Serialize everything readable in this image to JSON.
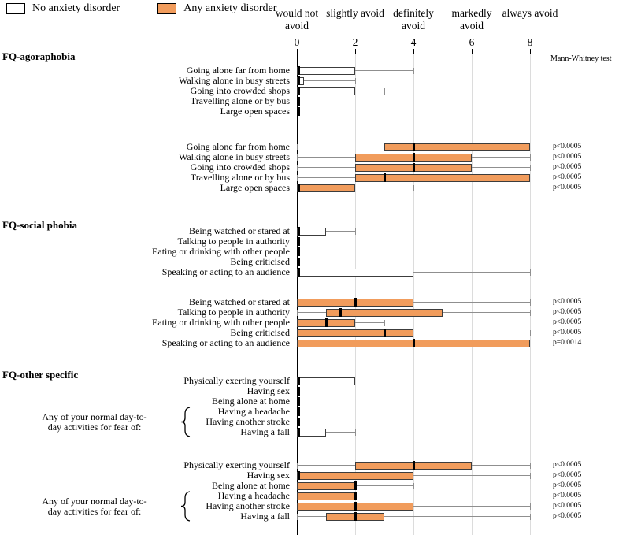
{
  "chart_data": {
    "type": "boxplot",
    "orientation": "horizontal",
    "x_axis": {
      "min": 0,
      "max": 8,
      "tick_labels": [
        "0",
        "2",
        "4",
        "6",
        "8"
      ],
      "category_labels": [
        "would not avoid",
        "slightly avoid",
        "definitely avoid",
        "markedly avoid",
        "always avoid"
      ]
    },
    "stats_column_label": "Mann-Whitney test",
    "legend": [
      {
        "label": "No anxiety disorder",
        "fill": "#ffffff"
      },
      {
        "label": "Any anxiety disorder",
        "fill": "#f19c5c"
      }
    ],
    "sections": [
      {
        "title": "FQ-agoraphobia",
        "groups": [
          {
            "legend": "No anxiety disorder",
            "fill": "#ffffff",
            "items": [
              {
                "label": "Going alone far from home",
                "low": 0,
                "q1": 0,
                "median": 0,
                "q3": 2,
                "high": 4
              },
              {
                "label": "Walking alone in busy streets",
                "low": 0,
                "q1": 0,
                "median": 0,
                "q3": 0.25,
                "high": 2
              },
              {
                "label": "Going into crowded shops",
                "low": 0,
                "q1": 0,
                "median": 0,
                "q3": 2,
                "high": 3
              },
              {
                "label": "Travelling alone or by bus",
                "low": 0,
                "q1": 0,
                "median": 0,
                "q3": 0,
                "high": 0
              },
              {
                "label": "Large open spaces",
                "low": 0,
                "q1": 0,
                "median": 0,
                "q3": 0,
                "high": 0
              }
            ]
          },
          {
            "legend": "Any anxiety disorder",
            "fill": "#f19c5c",
            "items": [
              {
                "label": "Going alone far from home",
                "low": 0,
                "q1": 3,
                "median": 4,
                "q3": 8,
                "high": 8,
                "p": "p<0.0005"
              },
              {
                "label": "Walking alone in busy streets",
                "low": 0,
                "q1": 2,
                "median": 4,
                "q3": 6,
                "high": 8,
                "p": "p<0.0005"
              },
              {
                "label": "Going into crowded shops",
                "low": 0,
                "q1": 2,
                "median": 4,
                "q3": 6,
                "high": 8,
                "p": "p<0.0005"
              },
              {
                "label": "Travelling alone or by bus",
                "low": 0,
                "q1": 2,
                "median": 3,
                "q3": 8,
                "high": 8,
                "p": "p<0.0005"
              },
              {
                "label": "Large open spaces",
                "low": 0,
                "q1": 0,
                "median": 0,
                "q3": 2,
                "high": 4,
                "p": "p<0.0005"
              }
            ]
          }
        ]
      },
      {
        "title": "FQ-social phobia",
        "groups": [
          {
            "legend": "No anxiety disorder",
            "fill": "#ffffff",
            "items": [
              {
                "label": "Being watched or stared at",
                "low": 0,
                "q1": 0,
                "median": 0,
                "q3": 1,
                "high": 2
              },
              {
                "label": "Talking to people in authority",
                "low": 0,
                "q1": 0,
                "median": 0,
                "q3": 0,
                "high": 0
              },
              {
                "label": "Eating or drinking with other people",
                "low": 0,
                "q1": 0,
                "median": 0,
                "q3": 0,
                "high": 0
              },
              {
                "label": "Being criticised",
                "low": 0,
                "q1": 0,
                "median": 0,
                "q3": 0,
                "high": 0
              },
              {
                "label": "Speaking or acting to an audience",
                "low": 0,
                "q1": 0,
                "median": 0,
                "q3": 4,
                "high": 8
              }
            ]
          },
          {
            "legend": "Any anxiety disorder",
            "fill": "#f19c5c",
            "items": [
              {
                "label": "Being watched or stared at",
                "low": 0,
                "q1": 0,
                "median": 2,
                "q3": 4,
                "high": 8,
                "p": "p<0.0005"
              },
              {
                "label": "Talking to people in authority",
                "low": 0,
                "q1": 1,
                "median": 1.5,
                "q3": 5,
                "high": 8,
                "p": "p<0.0005"
              },
              {
                "label": "Eating or drinking with other people",
                "low": 0,
                "q1": 0,
                "median": 1,
                "q3": 2,
                "high": 3,
                "p": "p<0.0005"
              },
              {
                "label": "Being criticised",
                "low": 0,
                "q1": 0,
                "median": 3,
                "q3": 4,
                "high": 8,
                "p": "p<0.0005"
              },
              {
                "label": "Speaking or acting to an audience",
                "low": 0,
                "q1": 0,
                "median": 4,
                "q3": 8,
                "high": 8,
                "p": "p=0.0014"
              }
            ]
          }
        ]
      },
      {
        "title": "FQ-other specific",
        "groups": [
          {
            "legend": "No anxiety disorder",
            "fill": "#ffffff",
            "bracket": {
              "lines": [
                "Any of your normal day-to-",
                "day activities for fear of:"
              ],
              "start_index": 3,
              "end_index": 5
            },
            "items": [
              {
                "label": "Physically exerting yourself",
                "low": 0,
                "q1": 0,
                "median": 0,
                "q3": 2,
                "high": 5
              },
              {
                "label": "Having sex",
                "low": 0,
                "q1": 0,
                "median": 0,
                "q3": 0,
                "high": 0
              },
              {
                "label": "Being alone at home",
                "low": 0,
                "q1": 0,
                "median": 0,
                "q3": 0,
                "high": 0
              },
              {
                "label": "Having a headache",
                "low": 0,
                "q1": 0,
                "median": 0,
                "q3": 0,
                "high": 0
              },
              {
                "label": "Having another stroke",
                "low": 0,
                "q1": 0,
                "median": 0,
                "q3": 0,
                "high": 0
              },
              {
                "label": "Having a fall",
                "low": 0,
                "q1": 0,
                "median": 0,
                "q3": 1,
                "high": 2
              }
            ]
          },
          {
            "legend": "Any anxiety disorder",
            "fill": "#f19c5c",
            "bracket": {
              "lines": [
                "Any of your normal day-to-",
                "day activities for fear of:"
              ],
              "start_index": 3,
              "end_index": 5
            },
            "items": [
              {
                "label": "Physically exerting yourself",
                "low": 0,
                "q1": 2,
                "median": 4,
                "q3": 6,
                "high": 8,
                "p": "p<0.0005"
              },
              {
                "label": "Having sex",
                "low": 0,
                "q1": 0,
                "median": 0,
                "q3": 4,
                "high": 8,
                "p": "p<0.0005"
              },
              {
                "label": "Being alone at home",
                "low": 0,
                "q1": 0,
                "median": 2,
                "q3": 2,
                "high": 4,
                "p": "p<0.0005"
              },
              {
                "label": "Having a headache",
                "low": 0,
                "q1": 0,
                "median": 2,
                "q3": 2,
                "high": 5,
                "p": "p<0.0005"
              },
              {
                "label": "Having another stroke",
                "low": 0,
                "q1": 0,
                "median": 2,
                "q3": 4,
                "high": 8,
                "p": "p<0.0005"
              },
              {
                "label": "Having a fall",
                "low": 0,
                "q1": 1,
                "median": 2,
                "q3": 3,
                "high": 8,
                "p": "p<0.0005"
              }
            ]
          }
        ]
      }
    ]
  }
}
